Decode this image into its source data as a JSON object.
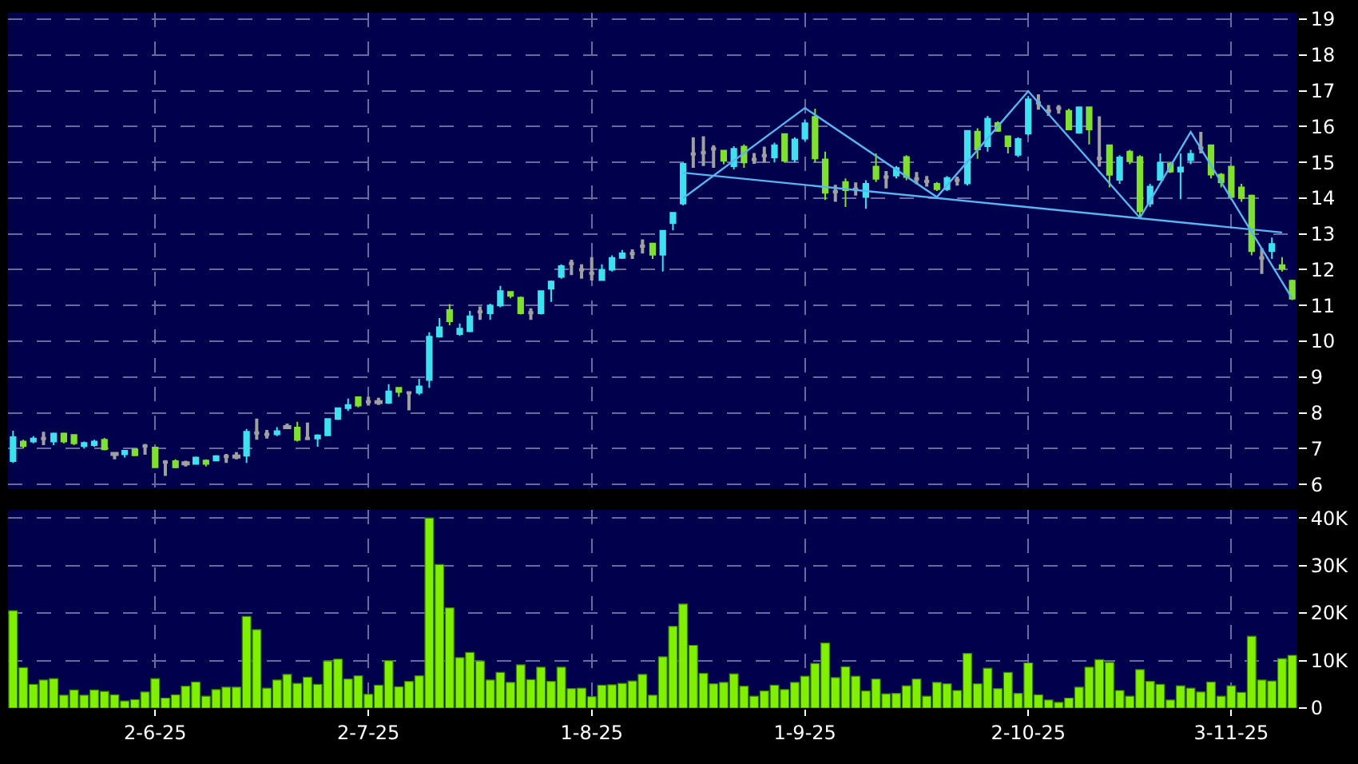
{
  "chart_data": [
    {
      "type": "candlestick",
      "categories": [
        null,
        null,
        null,
        null,
        null,
        null,
        null,
        null,
        null,
        null,
        null,
        null,
        null,
        null,
        null,
        null,
        null,
        null,
        null,
        null,
        null,
        null,
        null,
        null,
        null,
        null,
        null,
        null,
        null,
        null,
        null,
        null,
        null,
        null,
        null,
        null,
        null,
        null,
        null,
        null,
        null,
        null,
        null,
        null,
        null,
        null,
        null,
        null,
        null,
        null,
        null,
        null,
        null,
        null,
        null,
        null,
        null,
        null,
        null,
        null,
        null,
        null,
        null,
        null,
        null,
        null,
        null,
        null,
        null,
        null,
        null,
        null,
        null,
        null,
        null,
        null,
        null,
        null,
        null,
        null,
        null,
        null,
        null,
        null,
        null,
        null,
        null,
        null,
        null,
        null,
        null,
        null,
        null,
        null,
        null,
        null,
        null,
        null,
        null,
        null,
        null,
        null,
        null,
        null,
        null,
        null,
        null,
        null,
        null,
        null,
        null,
        null,
        null,
        null,
        null,
        null,
        null,
        null,
        null,
        null,
        null,
        null,
        null,
        null,
        null,
        null,
        null
      ],
      "ohlc": [
        [
          6.65,
          7.5,
          6.6,
          7.32
        ],
        [
          7.2,
          7.25,
          7.0,
          7.07
        ],
        [
          7.2,
          7.35,
          7.15,
          7.28
        ],
        [
          7.28,
          7.47,
          7.1,
          7.28
        ],
        [
          7.2,
          7.45,
          7.1,
          7.42
        ],
        [
          7.42,
          7.45,
          7.15,
          7.2
        ],
        [
          7.38,
          7.4,
          7.1,
          7.15
        ],
        [
          7.07,
          7.2,
          7.0,
          7.16
        ],
        [
          7.1,
          7.25,
          7.05,
          7.2
        ],
        [
          7.25,
          7.3,
          6.95,
          6.98
        ],
        [
          6.86,
          6.9,
          6.7,
          6.84
        ],
        [
          6.84,
          6.95,
          6.75,
          6.94
        ],
        [
          6.98,
          7.0,
          6.8,
          6.81
        ],
        [
          7.07,
          7.13,
          6.83,
          7.07
        ],
        [
          7.03,
          7.05,
          6.47,
          6.48
        ],
        [
          6.62,
          6.68,
          6.24,
          6.62
        ],
        [
          6.65,
          6.7,
          6.45,
          6.48
        ],
        [
          6.6,
          6.66,
          6.5,
          6.58
        ],
        [
          6.57,
          6.78,
          6.55,
          6.75
        ],
        [
          6.67,
          6.7,
          6.5,
          6.57
        ],
        [
          6.67,
          6.82,
          6.65,
          6.79
        ],
        [
          6.78,
          6.85,
          6.6,
          6.78
        ],
        [
          6.79,
          6.9,
          6.7,
          6.77
        ],
        [
          6.8,
          7.55,
          6.6,
          7.47
        ],
        [
          7.44,
          7.84,
          7.25,
          7.44
        ],
        [
          7.4,
          7.52,
          7.28,
          7.4
        ],
        [
          7.4,
          7.6,
          7.35,
          7.49
        ],
        [
          7.61,
          7.7,
          7.55,
          7.59
        ],
        [
          7.59,
          7.75,
          7.2,
          7.24
        ],
        [
          7.28,
          7.73,
          7.24,
          7.28
        ],
        [
          7.28,
          7.4,
          7.05,
          7.37
        ],
        [
          7.37,
          7.85,
          7.35,
          7.83
        ],
        [
          7.83,
          8.15,
          7.8,
          8.13
        ],
        [
          8.13,
          8.4,
          8.05,
          8.22
        ],
        [
          8.44,
          8.45,
          8.15,
          8.2
        ],
        [
          8.31,
          8.45,
          8.2,
          8.31
        ],
        [
          8.31,
          8.42,
          8.22,
          8.29
        ],
        [
          8.28,
          8.8,
          8.25,
          8.6
        ],
        [
          8.7,
          8.72,
          8.45,
          8.58
        ],
        [
          8.56,
          8.6,
          8.07,
          8.56
        ],
        [
          8.56,
          8.95,
          8.5,
          8.74
        ],
        [
          8.92,
          10.25,
          8.7,
          10.13
        ],
        [
          10.13,
          10.65,
          10.1,
          10.39
        ],
        [
          10.87,
          11.04,
          10.45,
          10.56
        ],
        [
          10.2,
          10.5,
          10.15,
          10.35
        ],
        [
          10.28,
          10.85,
          10.25,
          10.7
        ],
        [
          10.82,
          10.97,
          10.6,
          10.82
        ],
        [
          10.78,
          11.05,
          10.6,
          11.0
        ],
        [
          11.0,
          11.55,
          10.95,
          11.4
        ],
        [
          11.38,
          11.4,
          11.2,
          11.27
        ],
        [
          11.22,
          11.25,
          10.75,
          10.78
        ],
        [
          10.8,
          10.92,
          10.6,
          10.8
        ],
        [
          10.78,
          11.42,
          10.75,
          11.4
        ],
        [
          11.47,
          11.7,
          11.1,
          11.67
        ],
        [
          11.8,
          12.15,
          11.75,
          12.1
        ],
        [
          12.17,
          12.28,
          11.85,
          12.17
        ],
        [
          12.0,
          12.15,
          11.75,
          12.0
        ],
        [
          11.9,
          12.35,
          11.7,
          11.9
        ],
        [
          11.71,
          12.15,
          11.7,
          12.0
        ],
        [
          12.0,
          12.4,
          11.95,
          12.33
        ],
        [
          12.33,
          12.55,
          12.3,
          12.46
        ],
        [
          12.45,
          12.57,
          12.3,
          12.45
        ],
        [
          12.66,
          12.85,
          12.45,
          12.66
        ],
        [
          12.73,
          12.75,
          12.3,
          12.42
        ],
        [
          12.42,
          13.1,
          11.95,
          13.09
        ],
        [
          13.3,
          13.6,
          13.1,
          13.59
        ],
        [
          13.85,
          15.0,
          13.8,
          14.96
        ],
        [
          15.23,
          15.7,
          14.85,
          15.23
        ],
        [
          15.27,
          15.73,
          14.9,
          15.27
        ],
        [
          15.38,
          15.48,
          14.85,
          15.38
        ],
        [
          15.33,
          15.35,
          14.95,
          15.04
        ],
        [
          14.89,
          15.45,
          14.8,
          15.38
        ],
        [
          15.44,
          15.5,
          14.85,
          15.0
        ],
        [
          15.08,
          15.26,
          14.96,
          15.08
        ],
        [
          15.19,
          15.44,
          15.0,
          15.19
        ],
        [
          15.14,
          15.55,
          15.0,
          15.48
        ],
        [
          15.79,
          15.8,
          15.0,
          15.04
        ],
        [
          15.08,
          15.7,
          15.0,
          15.64
        ],
        [
          15.66,
          16.2,
          15.6,
          16.09
        ],
        [
          16.27,
          16.5,
          15.0,
          15.11
        ],
        [
          15.08,
          15.3,
          13.95,
          14.15
        ],
        [
          14.18,
          14.37,
          13.9,
          14.18
        ],
        [
          14.45,
          14.55,
          13.75,
          14.22
        ],
        [
          14.25,
          14.44,
          14.07,
          14.25
        ],
        [
          14.03,
          14.5,
          13.7,
          14.4
        ],
        [
          14.88,
          15.25,
          14.45,
          14.54
        ],
        [
          14.59,
          14.76,
          14.27,
          14.59
        ],
        [
          14.63,
          14.9,
          14.55,
          14.84
        ],
        [
          15.15,
          15.2,
          14.5,
          14.59
        ],
        [
          14.54,
          14.73,
          14.39,
          14.54
        ],
        [
          14.47,
          14.62,
          14.32,
          14.47
        ],
        [
          14.4,
          14.45,
          14.2,
          14.25
        ],
        [
          14.25,
          14.62,
          14.2,
          14.56
        ],
        [
          14.5,
          14.6,
          14.35,
          14.5
        ],
        [
          14.41,
          15.9,
          14.35,
          15.88
        ],
        [
          15.86,
          15.95,
          15.1,
          15.36
        ],
        [
          15.45,
          16.3,
          15.3,
          16.22
        ],
        [
          16.1,
          16.15,
          15.85,
          15.88
        ],
        [
          15.73,
          15.75,
          15.25,
          15.45
        ],
        [
          15.21,
          15.7,
          15.15,
          15.65
        ],
        [
          15.8,
          16.85,
          15.75,
          16.76
        ],
        [
          16.66,
          16.9,
          16.47,
          16.66
        ],
        [
          16.44,
          16.6,
          16.3,
          16.44
        ],
        [
          16.51,
          16.6,
          16.36,
          16.51
        ],
        [
          16.44,
          16.5,
          15.9,
          15.92
        ],
        [
          15.83,
          16.55,
          15.8,
          16.54
        ],
        [
          16.54,
          16.55,
          15.5,
          15.92
        ],
        [
          15.11,
          16.29,
          14.88,
          15.11
        ],
        [
          15.48,
          15.5,
          14.3,
          14.65
        ],
        [
          14.51,
          15.2,
          14.4,
          15.14
        ],
        [
          15.3,
          15.35,
          14.95,
          15.03
        ],
        [
          15.15,
          15.2,
          13.45,
          13.63
        ],
        [
          13.85,
          14.4,
          13.75,
          14.32
        ],
        [
          14.51,
          15.25,
          14.5,
          14.99
        ],
        [
          14.96,
          15.0,
          14.7,
          14.74
        ],
        [
          14.74,
          15.25,
          13.97,
          14.86
        ],
        [
          15.06,
          15.35,
          14.95,
          15.24
        ],
        [
          15.4,
          15.85,
          15.25,
          15.4
        ],
        [
          15.48,
          15.5,
          14.55,
          14.66
        ],
        [
          14.66,
          14.7,
          14.3,
          14.44
        ],
        [
          14.88,
          14.9,
          13.95,
          14.03
        ],
        [
          14.3,
          14.4,
          13.9,
          14.0
        ],
        [
          14.07,
          14.1,
          12.4,
          12.52
        ],
        [
          12.33,
          12.6,
          11.88,
          12.33
        ],
        [
          12.52,
          12.9,
          12.3,
          12.72
        ],
        [
          12.13,
          12.35,
          11.95,
          12.03
        ],
        [
          11.69,
          11.72,
          11.15,
          11.19
        ]
      ],
      "colors": [
        "#40e0f0",
        "#80e030",
        "#40e0f0",
        "#a0a0a0",
        "#40e0f0",
        "#80e030",
        "#80e030",
        "#40e0f0",
        "#40e0f0",
        "#80e030",
        "#a0a0a0",
        "#40e0f0",
        "#80e030",
        "#a0a0a0",
        "#80e030",
        "#a0a0a0",
        "#80e030",
        "#a0a0a0",
        "#40e0f0",
        "#80e030",
        "#40e0f0",
        "#a0a0a0",
        "#a0a0a0",
        "#40e0f0",
        "#a0a0a0",
        "#a0a0a0",
        "#40e0f0",
        "#a0a0a0",
        "#80e030",
        "#a0a0a0",
        "#40e0f0",
        "#40e0f0",
        "#40e0f0",
        "#40e0f0",
        "#80e030",
        "#a0a0a0",
        "#a0a0a0",
        "#40e0f0",
        "#80e030",
        "#a0a0a0",
        "#40e0f0",
        "#40e0f0",
        "#40e0f0",
        "#80e030",
        "#40e0f0",
        "#40e0f0",
        "#a0a0a0",
        "#40e0f0",
        "#40e0f0",
        "#80e030",
        "#80e030",
        "#a0a0a0",
        "#40e0f0",
        "#40e0f0",
        "#40e0f0",
        "#a0a0a0",
        "#a0a0a0",
        "#a0a0a0",
        "#40e0f0",
        "#40e0f0",
        "#40e0f0",
        "#a0a0a0",
        "#a0a0a0",
        "#80e030",
        "#40e0f0",
        "#40e0f0",
        "#40e0f0",
        "#a0a0a0",
        "#a0a0a0",
        "#a0a0a0",
        "#80e030",
        "#40e0f0",
        "#80e030",
        "#a0a0a0",
        "#a0a0a0",
        "#40e0f0",
        "#80e030",
        "#40e0f0",
        "#40e0f0",
        "#80e030",
        "#80e030",
        "#a0a0a0",
        "#80e030",
        "#a0a0a0",
        "#40e0f0",
        "#80e030",
        "#a0a0a0",
        "#40e0f0",
        "#80e030",
        "#a0a0a0",
        "#a0a0a0",
        "#80e030",
        "#40e0f0",
        "#a0a0a0",
        "#40e0f0",
        "#80e030",
        "#40e0f0",
        "#80e030",
        "#80e030",
        "#40e0f0",
        "#40e0f0",
        "#a0a0a0",
        "#a0a0a0",
        "#a0a0a0",
        "#80e030",
        "#40e0f0",
        "#80e030",
        "#a0a0a0",
        "#80e030",
        "#40e0f0",
        "#80e030",
        "#80e030",
        "#40e0f0",
        "#40e0f0",
        "#80e030",
        "#40e0f0",
        "#40e0f0",
        "#a0a0a0",
        "#80e030",
        "#80e030",
        "#80e030",
        "#80e030",
        "#80e030",
        "#a0a0a0",
        "#40e0f0",
        "#80e030",
        "#80e030"
      ],
      "series": [
        {
          "type": "line",
          "color": "#5ab4f0",
          "values": [
            null,
            null,
            null,
            null,
            null,
            null,
            null,
            null,
            null,
            null,
            null,
            null,
            null,
            null,
            null,
            null,
            null,
            null,
            null,
            null,
            null,
            null,
            null,
            null,
            null,
            null,
            null,
            null,
            null,
            null,
            null,
            null,
            null,
            null,
            null,
            null,
            null,
            null,
            null,
            null,
            null,
            null,
            null,
            null,
            null,
            null,
            null,
            null,
            null,
            null,
            null,
            null,
            null,
            null,
            null,
            null,
            null,
            null,
            null,
            null,
            null,
            null,
            null,
            null,
            null,
            null,
            14.0,
            null,
            null,
            null,
            null,
            null,
            null,
            null,
            null,
            null,
            null,
            null,
            16.52,
            null,
            null,
            null,
            null,
            null,
            null,
            null,
            null,
            null,
            null,
            null,
            null,
            14.03,
            null,
            null,
            null,
            null,
            null,
            null,
            null,
            null,
            16.99,
            null,
            null,
            null,
            null,
            null,
            null,
            null,
            null,
            null,
            null,
            13.45,
            null,
            null,
            null,
            null,
            15.85,
            null,
            null,
            null,
            null,
            null,
            null,
            null,
            null,
            null,
            11.19
          ]
        },
        {
          "type": "line",
          "color": "#5ab4f0",
          "values": [
            null,
            null,
            null,
            null,
            null,
            null,
            null,
            null,
            null,
            null,
            null,
            null,
            null,
            null,
            null,
            null,
            null,
            null,
            null,
            null,
            null,
            null,
            null,
            null,
            null,
            null,
            null,
            null,
            null,
            null,
            null,
            null,
            null,
            null,
            null,
            null,
            null,
            null,
            null,
            null,
            null,
            null,
            null,
            null,
            null,
            null,
            null,
            null,
            null,
            null,
            null,
            null,
            null,
            null,
            null,
            null,
            null,
            null,
            null,
            null,
            null,
            null,
            null,
            null,
            null,
            null,
            14.71,
            null,
            null,
            null,
            null,
            null,
            null,
            null,
            null,
            null,
            null,
            null,
            null,
            null,
            null,
            null,
            null,
            null,
            null,
            null,
            null,
            null,
            null,
            null,
            null,
            null,
            null,
            null,
            null,
            null,
            null,
            null,
            null,
            null,
            null,
            null,
            null,
            null,
            null,
            null,
            null,
            null,
            null,
            null,
            null,
            null,
            null,
            null,
            null,
            null,
            null,
            null,
            null,
            null,
            null,
            null,
            null,
            null,
            null,
            13.04,
            null
          ]
        }
      ],
      "ylim": [
        5.87,
        19.18
      ],
      "yticks": [
        6,
        7,
        8,
        9,
        10,
        11,
        12,
        13,
        14,
        15,
        16,
        17,
        18,
        19
      ],
      "grid": true,
      "tick_labels": "y"
    },
    {
      "type": "bar",
      "categories": [
        null,
        null,
        null,
        null,
        null,
        null,
        null,
        null,
        null,
        null,
        null,
        null,
        null,
        null,
        "2-6-25",
        null,
        null,
        null,
        null,
        null,
        null,
        null,
        null,
        null,
        null,
        null,
        null,
        null,
        null,
        null,
        null,
        null,
        null,
        null,
        null,
        "2-7-25",
        null,
        null,
        null,
        null,
        null,
        null,
        null,
        null,
        null,
        null,
        null,
        null,
        null,
        null,
        null,
        null,
        null,
        null,
        null,
        null,
        null,
        "1-8-25",
        null,
        null,
        null,
        null,
        null,
        null,
        null,
        null,
        null,
        null,
        null,
        null,
        null,
        null,
        null,
        null,
        null,
        null,
        null,
        null,
        "1-9-25",
        null,
        null,
        null,
        null,
        null,
        null,
        null,
        null,
        null,
        null,
        null,
        null,
        null,
        null,
        null,
        null,
        null,
        null,
        null,
        null,
        null,
        "2-10-25",
        null,
        null,
        null,
        null,
        null,
        null,
        null,
        null,
        null,
        null,
        null,
        null,
        null,
        null,
        null,
        null,
        null,
        null,
        null,
        "3-11-25",
        null,
        null,
        null,
        null,
        null,
        null
      ],
      "values": [
        20500,
        8500,
        5000,
        5900,
        6200,
        2700,
        3800,
        2700,
        3800,
        3500,
        2800,
        1500,
        1800,
        3400,
        6200,
        2100,
        2800,
        4600,
        5500,
        2500,
        3900,
        4400,
        4400,
        19300,
        16500,
        4200,
        5900,
        7100,
        5200,
        6500,
        5000,
        9900,
        10300,
        6100,
        6800,
        2900,
        4800,
        10000,
        4500,
        5600,
        6800,
        40000,
        30200,
        21100,
        10600,
        11700,
        9900,
        5900,
        7500,
        5400,
        9100,
        6000,
        8600,
        5600,
        8600,
        4100,
        4200,
        2400,
        4800,
        4900,
        5200,
        5700,
        7100,
        2700,
        10800,
        17200,
        21900,
        13200,
        7300,
        5100,
        5400,
        7200,
        4600,
        2500,
        3600,
        4800,
        3900,
        5400,
        6700,
        9400,
        13700,
        6400,
        8700,
        6700,
        3600,
        6100,
        3000,
        3100,
        4700,
        6100,
        2500,
        5400,
        5100,
        3700,
        11500,
        5100,
        8400,
        4100,
        7500,
        3100,
        9500,
        2800,
        1700,
        1200,
        2100,
        4400,
        8600,
        10200,
        9600,
        3700,
        2500,
        8100,
        5600,
        5000,
        1700,
        4700,
        4200,
        3400,
        5500,
        2500,
        4700,
        3300,
        15100,
        5900,
        5700,
        10400,
        11100
      ],
      "color": "#80f000",
      "ylim": [
        0,
        41700
      ],
      "yticks": [
        0,
        {
          "value": 10000,
          "label": "10K"
        },
        {
          "value": 20000,
          "label": "20K"
        },
        {
          "value": 30000,
          "label": "30K"
        },
        {
          "value": 40000,
          "label": "40K"
        }
      ],
      "grid": true
    }
  ]
}
